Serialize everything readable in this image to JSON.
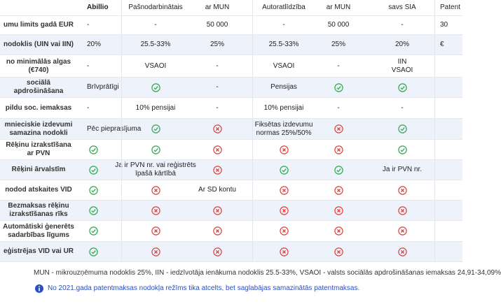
{
  "table": {
    "header": [
      null,
      "Abillio",
      "Pašnodarbinātais",
      "ar MUN",
      "Autoratlīdzība",
      "ar MUN",
      "savs SIA",
      "Patent"
    ],
    "rows": [
      [
        "umu limits gadā EUR",
        "-",
        "-",
        "50 000",
        "-",
        "50 000",
        "-",
        "30"
      ],
      [
        "nodoklis (UIN vai IIN)",
        "20%",
        "25.5-33%",
        "25%",
        "25.5-33%",
        "25%",
        "20%",
        "€"
      ],
      [
        "no minimālās algas (€740)",
        "-",
        "VSAOI",
        "-",
        "VSAOI",
        "-",
        [
          "IIN",
          "VSAOI"
        ],
        null
      ],
      [
        "sociālā apdrošināšana",
        "Brīvprātīgi",
        {
          "icon": "check"
        },
        "-",
        "Pensijas",
        {
          "icon": "check"
        },
        {
          "icon": "check"
        },
        null
      ],
      [
        "pildu soc. iemaksas",
        "-",
        "10% pensijai",
        "-",
        "10% pensijai",
        "-",
        "-",
        null
      ],
      [
        "mnieciskie izdevumi samazina nodokli",
        "Pēc pieprasījuma",
        {
          "icon": "check"
        },
        {
          "icon": "cross"
        },
        "Fiksētas izdevumu normas 25%/50%",
        {
          "icon": "cross"
        },
        {
          "icon": "check"
        },
        null
      ],
      [
        "Rēķinu izrakstīšana ar PVN",
        {
          "icon": "check"
        },
        {
          "icon": "check"
        },
        {
          "icon": "cross"
        },
        {
          "icon": "cross"
        },
        {
          "icon": "cross"
        },
        {
          "icon": "check"
        },
        null
      ],
      [
        "Rēķini ārvalstīm",
        {
          "icon": "check"
        },
        "Ja ir PVN nr. vai reģistrēts īpašā kārtībā",
        {
          "icon": "cross"
        },
        {
          "icon": "check"
        },
        {
          "icon": "check"
        },
        "Ja ir PVN nr.",
        null
      ],
      [
        "nodod atskaites VID",
        {
          "icon": "check"
        },
        {
          "icon": "cross"
        },
        "Ar SD kontu",
        {
          "icon": "cross"
        },
        {
          "icon": "cross"
        },
        {
          "icon": "cross"
        },
        null
      ],
      [
        "Bezmaksas rēķinu izrakstīšanas rīks",
        {
          "icon": "check"
        },
        {
          "icon": "cross"
        },
        {
          "icon": "cross"
        },
        {
          "icon": "cross"
        },
        {
          "icon": "cross"
        },
        {
          "icon": "cross"
        },
        null
      ],
      [
        "Automātiski ģenerēts sadarbības līgums",
        {
          "icon": "check"
        },
        {
          "icon": "cross"
        },
        {
          "icon": "cross"
        },
        {
          "icon": "cross"
        },
        {
          "icon": "cross"
        },
        {
          "icon": "cross"
        },
        null
      ],
      [
        "eģistrējas VID vai UR",
        {
          "icon": "check"
        },
        {
          "icon": "cross"
        },
        {
          "icon": "cross"
        },
        {
          "icon": "cross"
        },
        {
          "icon": "cross"
        },
        {
          "icon": "cross"
        },
        null
      ]
    ]
  },
  "footnote": "MUN - mikrouzņēmuma nodoklis 25%, IIN - iedzīvotāja ienākuma nodoklis 25.5-33%, VSAOI - valsts sociālās apdrošināšanas iemaksas 24,91-34,09%",
  "info": "No 2021.gada patentmaksas nodokļa režīms tika atcelts, bet saglabājas samazinātās patentmaksas."
}
